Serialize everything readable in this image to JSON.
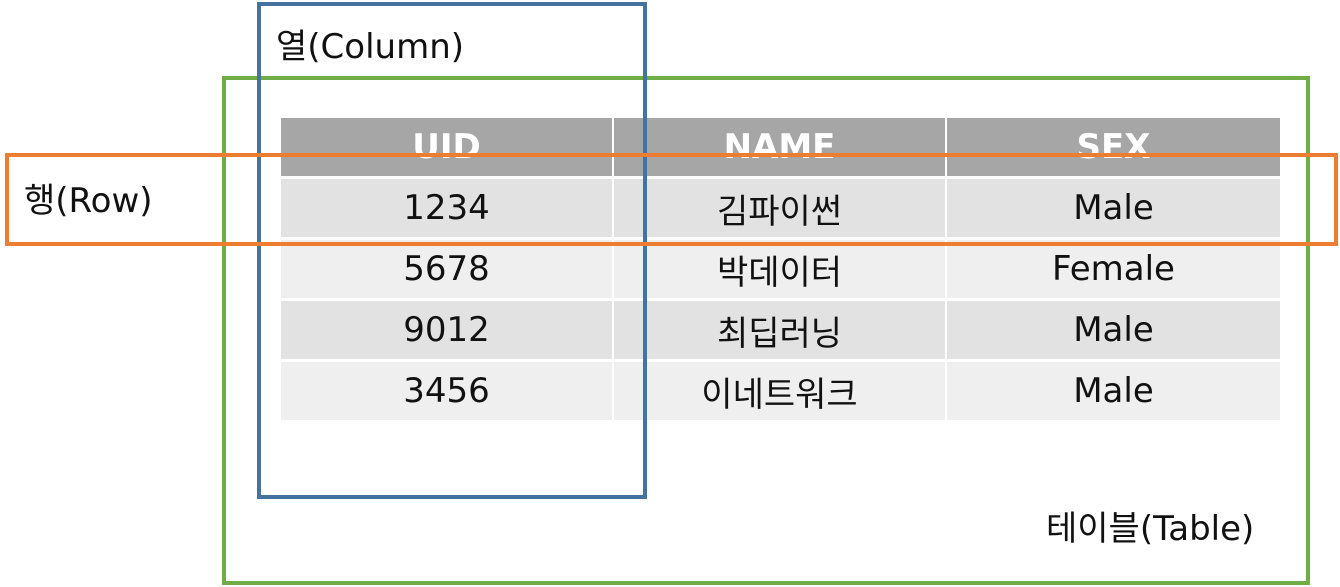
{
  "labels": {
    "column": "열(Column)",
    "row": "행(Row)",
    "table": "테이블(Table)"
  },
  "table": {
    "headers": [
      "UID",
      "NAME",
      "SEX"
    ],
    "rows": [
      [
        "1234",
        "김파이썬",
        "Male"
      ],
      [
        "5678",
        "박데이터",
        "Female"
      ],
      [
        "9012",
        "최딥러닝",
        "Male"
      ],
      [
        "3456",
        "이네트워크",
        "Male"
      ]
    ]
  },
  "colors": {
    "header_bg": "#a6a6a6",
    "row_dark_bg": "#e2e2e2",
    "row_light_bg": "#efefef",
    "column_outline": "#44739f",
    "row_outline": "#ed7d31",
    "table_outline": "#70ad47"
  }
}
